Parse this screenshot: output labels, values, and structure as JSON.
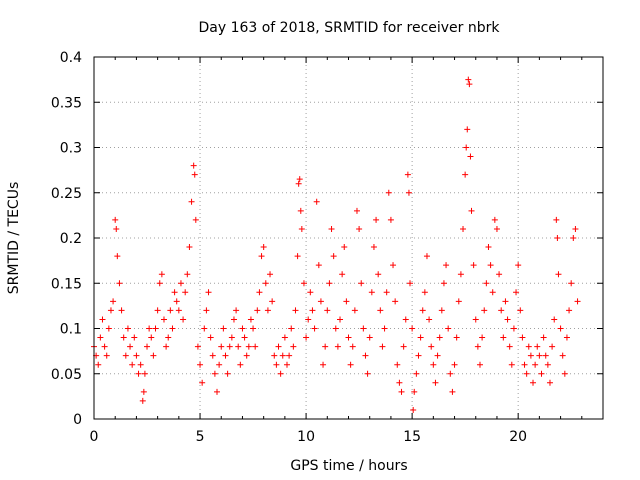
{
  "chart_data": {
    "type": "scatter",
    "title": "Day 163 of 2018, SRMTID for receiver nbrk",
    "xlabel": "GPS time / hours",
    "ylabel": "SRMTID / TECUs",
    "xlim": [
      0,
      24
    ],
    "ylim": [
      0,
      0.4
    ],
    "grid": true,
    "x_ticks": [
      0,
      5,
      10,
      15,
      20
    ],
    "x_tick_labels": [
      "0",
      "5",
      "10",
      "15",
      "20"
    ],
    "y_ticks": [
      0,
      0.05,
      0.1,
      0.15,
      0.2,
      0.25,
      0.3,
      0.35,
      0.4
    ],
    "y_tick_labels": [
      "0",
      "0.05",
      "0.1",
      "0.15",
      "0.2",
      "0.25",
      "0.3",
      "0.35",
      "0.4"
    ],
    "marker": "+",
    "marker_color": "#ff0000",
    "series": [
      {
        "name": "SRMTID",
        "points": [
          [
            0.0,
            0.08
          ],
          [
            0.1,
            0.07
          ],
          [
            0.2,
            0.06
          ],
          [
            0.3,
            0.09
          ],
          [
            0.4,
            0.11
          ],
          [
            0.5,
            0.08
          ],
          [
            0.6,
            0.07
          ],
          [
            0.7,
            0.1
          ],
          [
            0.8,
            0.12
          ],
          [
            0.9,
            0.13
          ],
          [
            1.0,
            0.22
          ],
          [
            1.05,
            0.21
          ],
          [
            1.1,
            0.18
          ],
          [
            1.2,
            0.15
          ],
          [
            1.3,
            0.12
          ],
          [
            1.4,
            0.09
          ],
          [
            1.5,
            0.07
          ],
          [
            1.6,
            0.1
          ],
          [
            1.7,
            0.08
          ],
          [
            1.8,
            0.06
          ],
          [
            1.9,
            0.09
          ],
          [
            2.0,
            0.07
          ],
          [
            2.1,
            0.05
          ],
          [
            2.2,
            0.06
          ],
          [
            2.3,
            0.02
          ],
          [
            2.35,
            0.03
          ],
          [
            2.4,
            0.05
          ],
          [
            2.5,
            0.08
          ],
          [
            2.6,
            0.1
          ],
          [
            2.7,
            0.09
          ],
          [
            2.8,
            0.07
          ],
          [
            2.9,
            0.1
          ],
          [
            3.0,
            0.12
          ],
          [
            3.1,
            0.15
          ],
          [
            3.2,
            0.16
          ],
          [
            3.3,
            0.11
          ],
          [
            3.4,
            0.08
          ],
          [
            3.5,
            0.09
          ],
          [
            3.6,
            0.12
          ],
          [
            3.7,
            0.1
          ],
          [
            3.8,
            0.14
          ],
          [
            3.9,
            0.13
          ],
          [
            4.0,
            0.12
          ],
          [
            4.1,
            0.15
          ],
          [
            4.2,
            0.11
          ],
          [
            4.3,
            0.14
          ],
          [
            4.4,
            0.16
          ],
          [
            4.5,
            0.19
          ],
          [
            4.6,
            0.24
          ],
          [
            4.7,
            0.28
          ],
          [
            4.75,
            0.27
          ],
          [
            4.8,
            0.22
          ],
          [
            4.9,
            0.08
          ],
          [
            5.0,
            0.06
          ],
          [
            5.1,
            0.04
          ],
          [
            5.2,
            0.1
          ],
          [
            5.3,
            0.12
          ],
          [
            5.4,
            0.14
          ],
          [
            5.5,
            0.09
          ],
          [
            5.6,
            0.07
          ],
          [
            5.7,
            0.05
          ],
          [
            5.8,
            0.03
          ],
          [
            5.9,
            0.06
          ],
          [
            6.0,
            0.08
          ],
          [
            6.1,
            0.1
          ],
          [
            6.2,
            0.07
          ],
          [
            6.3,
            0.05
          ],
          [
            6.4,
            0.08
          ],
          [
            6.5,
            0.09
          ],
          [
            6.6,
            0.11
          ],
          [
            6.7,
            0.12
          ],
          [
            6.8,
            0.08
          ],
          [
            6.9,
            0.06
          ],
          [
            7.0,
            0.1
          ],
          [
            7.1,
            0.09
          ],
          [
            7.2,
            0.07
          ],
          [
            7.3,
            0.08
          ],
          [
            7.4,
            0.11
          ],
          [
            7.5,
            0.1
          ],
          [
            7.6,
            0.08
          ],
          [
            7.7,
            0.12
          ],
          [
            7.8,
            0.14
          ],
          [
            7.9,
            0.18
          ],
          [
            8.0,
            0.19
          ],
          [
            8.1,
            0.15
          ],
          [
            8.2,
            0.12
          ],
          [
            8.3,
            0.16
          ],
          [
            8.4,
            0.13
          ],
          [
            8.5,
            0.07
          ],
          [
            8.6,
            0.06
          ],
          [
            8.7,
            0.08
          ],
          [
            8.8,
            0.05
          ],
          [
            8.9,
            0.07
          ],
          [
            9.0,
            0.09
          ],
          [
            9.1,
            0.06
          ],
          [
            9.2,
            0.07
          ],
          [
            9.3,
            0.1
          ],
          [
            9.4,
            0.08
          ],
          [
            9.5,
            0.12
          ],
          [
            9.6,
            0.18
          ],
          [
            9.65,
            0.26
          ],
          [
            9.7,
            0.265
          ],
          [
            9.75,
            0.23
          ],
          [
            9.8,
            0.21
          ],
          [
            9.9,
            0.15
          ],
          [
            10.0,
            0.09
          ],
          [
            10.1,
            0.11
          ],
          [
            10.2,
            0.14
          ],
          [
            10.3,
            0.12
          ],
          [
            10.4,
            0.1
          ],
          [
            10.5,
            0.24
          ],
          [
            10.6,
            0.17
          ],
          [
            10.7,
            0.13
          ],
          [
            10.8,
            0.06
          ],
          [
            10.9,
            0.08
          ],
          [
            11.0,
            0.12
          ],
          [
            11.1,
            0.15
          ],
          [
            11.2,
            0.21
          ],
          [
            11.3,
            0.18
          ],
          [
            11.4,
            0.1
          ],
          [
            11.5,
            0.08
          ],
          [
            11.6,
            0.11
          ],
          [
            11.7,
            0.16
          ],
          [
            11.8,
            0.19
          ],
          [
            11.9,
            0.13
          ],
          [
            12.0,
            0.09
          ],
          [
            12.1,
            0.06
          ],
          [
            12.2,
            0.08
          ],
          [
            12.3,
            0.12
          ],
          [
            12.4,
            0.23
          ],
          [
            12.5,
            0.21
          ],
          [
            12.6,
            0.15
          ],
          [
            12.7,
            0.1
          ],
          [
            12.8,
            0.07
          ],
          [
            12.9,
            0.05
          ],
          [
            13.0,
            0.09
          ],
          [
            13.1,
            0.14
          ],
          [
            13.2,
            0.19
          ],
          [
            13.3,
            0.22
          ],
          [
            13.4,
            0.16
          ],
          [
            13.5,
            0.12
          ],
          [
            13.6,
            0.08
          ],
          [
            13.7,
            0.1
          ],
          [
            13.8,
            0.14
          ],
          [
            13.9,
            0.25
          ],
          [
            14.0,
            0.22
          ],
          [
            14.1,
            0.17
          ],
          [
            14.2,
            0.13
          ],
          [
            14.3,
            0.06
          ],
          [
            14.4,
            0.04
          ],
          [
            14.5,
            0.03
          ],
          [
            14.6,
            0.08
          ],
          [
            14.7,
            0.11
          ],
          [
            14.8,
            0.27
          ],
          [
            14.85,
            0.25
          ],
          [
            14.9,
            0.15
          ],
          [
            15.0,
            0.1
          ],
          [
            15.05,
            0.01
          ],
          [
            15.1,
            0.03
          ],
          [
            15.2,
            0.05
          ],
          [
            15.3,
            0.07
          ],
          [
            15.4,
            0.09
          ],
          [
            15.5,
            0.12
          ],
          [
            15.6,
            0.14
          ],
          [
            15.7,
            0.18
          ],
          [
            15.8,
            0.11
          ],
          [
            15.9,
            0.08
          ],
          [
            16.0,
            0.06
          ],
          [
            16.1,
            0.04
          ],
          [
            16.2,
            0.07
          ],
          [
            16.3,
            0.09
          ],
          [
            16.4,
            0.12
          ],
          [
            16.5,
            0.15
          ],
          [
            16.6,
            0.17
          ],
          [
            16.7,
            0.1
          ],
          [
            16.8,
            0.05
          ],
          [
            16.9,
            0.03
          ],
          [
            17.0,
            0.06
          ],
          [
            17.1,
            0.09
          ],
          [
            17.2,
            0.13
          ],
          [
            17.3,
            0.16
          ],
          [
            17.4,
            0.21
          ],
          [
            17.5,
            0.27
          ],
          [
            17.55,
            0.3
          ],
          [
            17.6,
            0.32
          ],
          [
            17.65,
            0.375
          ],
          [
            17.7,
            0.37
          ],
          [
            17.75,
            0.29
          ],
          [
            17.8,
            0.23
          ],
          [
            17.9,
            0.17
          ],
          [
            18.0,
            0.11
          ],
          [
            18.1,
            0.08
          ],
          [
            18.2,
            0.06
          ],
          [
            18.3,
            0.09
          ],
          [
            18.4,
            0.12
          ],
          [
            18.5,
            0.15
          ],
          [
            18.6,
            0.19
          ],
          [
            18.7,
            0.17
          ],
          [
            18.8,
            0.14
          ],
          [
            18.9,
            0.22
          ],
          [
            19.0,
            0.21
          ],
          [
            19.1,
            0.16
          ],
          [
            19.2,
            0.12
          ],
          [
            19.3,
            0.09
          ],
          [
            19.4,
            0.13
          ],
          [
            19.5,
            0.11
          ],
          [
            19.6,
            0.08
          ],
          [
            19.7,
            0.06
          ],
          [
            19.8,
            0.1
          ],
          [
            19.9,
            0.14
          ],
          [
            20.0,
            0.17
          ],
          [
            20.1,
            0.12
          ],
          [
            20.2,
            0.09
          ],
          [
            20.3,
            0.06
          ],
          [
            20.4,
            0.05
          ],
          [
            20.5,
            0.08
          ],
          [
            20.6,
            0.07
          ],
          [
            20.7,
            0.04
          ],
          [
            20.8,
            0.06
          ],
          [
            20.9,
            0.08
          ],
          [
            21.0,
            0.07
          ],
          [
            21.1,
            0.05
          ],
          [
            21.2,
            0.09
          ],
          [
            21.3,
            0.07
          ],
          [
            21.4,
            0.06
          ],
          [
            21.5,
            0.04
          ],
          [
            21.6,
            0.08
          ],
          [
            21.7,
            0.11
          ],
          [
            21.8,
            0.22
          ],
          [
            21.85,
            0.2
          ],
          [
            21.9,
            0.16
          ],
          [
            22.0,
            0.1
          ],
          [
            22.1,
            0.07
          ],
          [
            22.2,
            0.05
          ],
          [
            22.3,
            0.09
          ],
          [
            22.4,
            0.12
          ],
          [
            22.5,
            0.15
          ],
          [
            22.6,
            0.2
          ],
          [
            22.7,
            0.21
          ],
          [
            22.8,
            0.13
          ]
        ]
      }
    ]
  }
}
